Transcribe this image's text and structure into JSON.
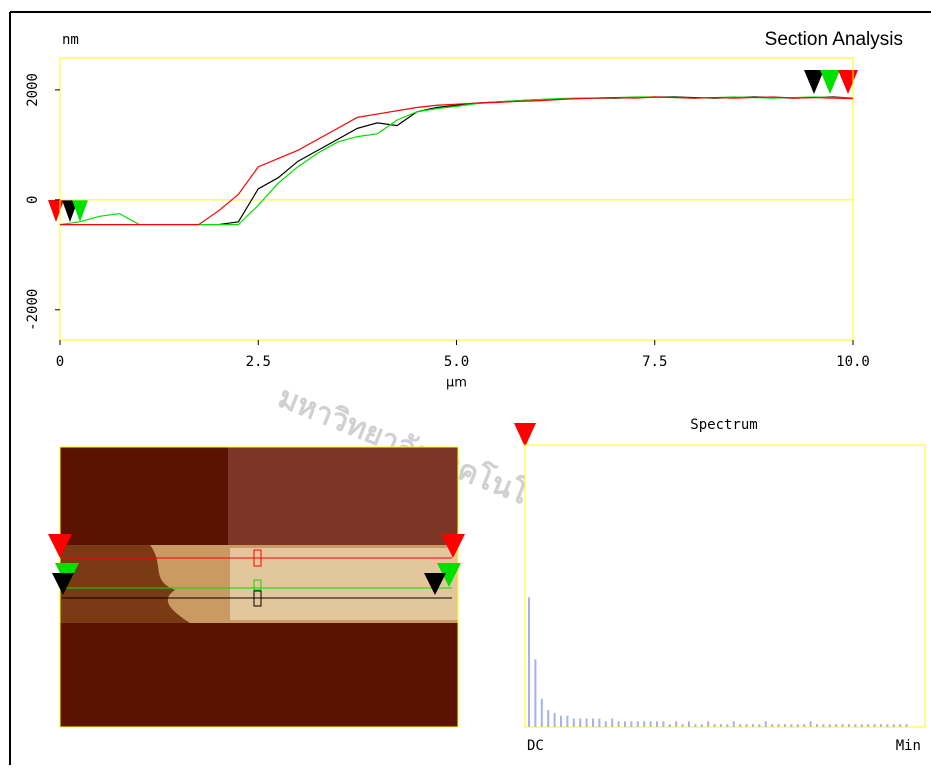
{
  "header": {
    "title": "Section Analysis"
  },
  "watermark": "มหาวิทยาลัยเทคโนโลยีสุรนารี",
  "chart_data": [
    {
      "type": "line",
      "ylabel": "nm",
      "xlabel": "µm",
      "x": [
        0,
        0.25,
        0.5,
        0.75,
        1,
        1.25,
        1.5,
        1.75,
        2,
        2.25,
        2.5,
        2.75,
        3,
        3.25,
        3.5,
        3.75,
        4,
        4.25,
        4.5,
        4.75,
        5,
        5.25,
        5.5,
        5.75,
        6,
        6.25,
        6.5,
        6.75,
        7,
        7.25,
        7.5,
        7.75,
        8,
        8.25,
        8.5,
        8.75,
        9,
        9.25,
        9.5,
        9.75,
        10
      ],
      "series": [
        {
          "color": "#000000",
          "values": [
            -450,
            -450,
            -450,
            -450,
            -450,
            -450,
            -450,
            -450,
            -450,
            -400,
            200,
            400,
            700,
            900,
            1100,
            1300,
            1400,
            1350,
            1600,
            1680,
            1720,
            1760,
            1780,
            1800,
            1820,
            1830,
            1840,
            1850,
            1850,
            1860,
            1870,
            1870,
            1860,
            1850,
            1860,
            1870,
            1860,
            1850,
            1860,
            1870,
            1850
          ]
        },
        {
          "color": "#00e000",
          "values": [
            -450,
            -400,
            -300,
            -250,
            -450,
            -450,
            -450,
            -450,
            -450,
            -450,
            -100,
            300,
            600,
            850,
            1050,
            1150,
            1200,
            1450,
            1600,
            1660,
            1700,
            1750,
            1780,
            1800,
            1820,
            1840,
            1850,
            1850,
            1860,
            1870,
            1870,
            1860,
            1850,
            1860,
            1870,
            1860,
            1850,
            1860,
            1870,
            1860,
            1850
          ]
        },
        {
          "color": "#ff0000",
          "values": [
            -450,
            -450,
            -450,
            -450,
            -450,
            -450,
            -450,
            -450,
            -200,
            100,
            600,
            750,
            900,
            1100,
            1300,
            1500,
            1560,
            1620,
            1680,
            1720,
            1740,
            1760,
            1770,
            1790,
            1800,
            1820,
            1840,
            1850,
            1860,
            1850,
            1870,
            1860,
            1850,
            1860,
            1850,
            1860,
            1870,
            1850,
            1860,
            1850,
            1840
          ]
        }
      ],
      "xlim": [
        0,
        10
      ],
      "xticks": [
        0,
        2.5,
        {
          "value": 5,
          "label": "5.0"
        },
        7.5,
        {
          "value": 10,
          "label": "10.0"
        }
      ],
      "ylim": [
        -2550,
        2580
      ],
      "yticks": [
        -2000,
        0,
        2000
      ],
      "zero_line": true,
      "frame_color": "#ffff00"
    },
    {
      "type": "bar",
      "title": "Spectrum",
      "xlabels": [
        "DC",
        "Min"
      ],
      "color": "#aab0e8",
      "ylim": [
        0,
        100
      ],
      "values": [
        46,
        24,
        10,
        6,
        5,
        4,
        4,
        3,
        3,
        3,
        3,
        3,
        2,
        3,
        2,
        2,
        2,
        2,
        2,
        2,
        2,
        2,
        1,
        2,
        1,
        2,
        1,
        1,
        2,
        1,
        1,
        1,
        2,
        1,
        1,
        1,
        1,
        2,
        1,
        1,
        1,
        1,
        1,
        1,
        2,
        1,
        1,
        1,
        1,
        1,
        1,
        1,
        1,
        1,
        1,
        1,
        1,
        1,
        1,
        1
      ]
    }
  ]
}
